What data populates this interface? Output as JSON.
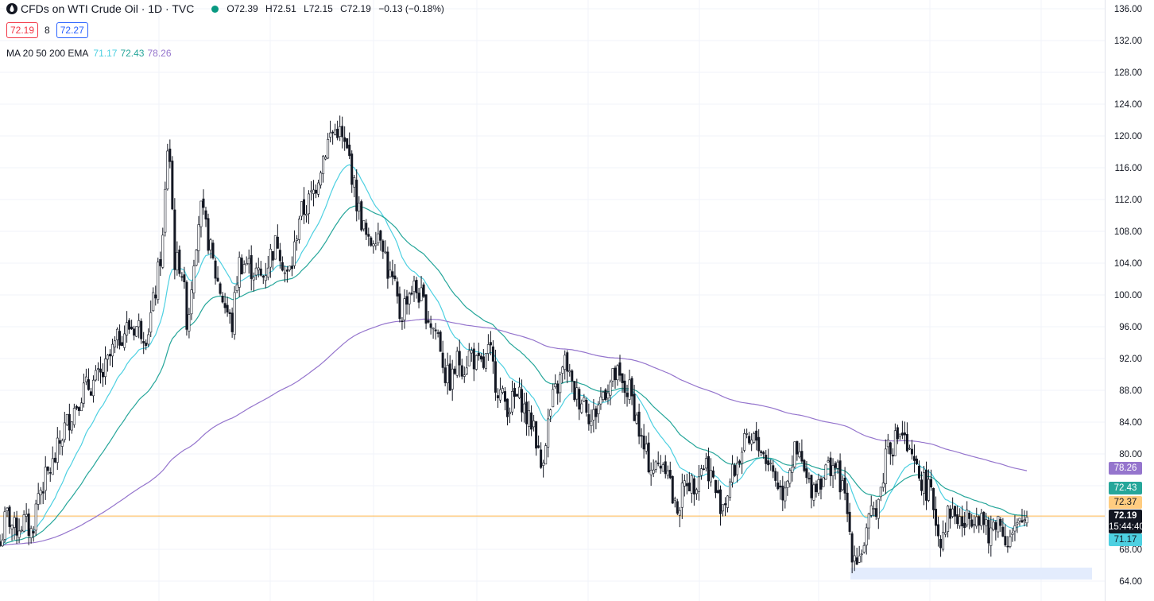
{
  "header": {
    "title": "CFDs on WTI Crude Oil · 1D · TVC",
    "ohlc": {
      "open": "O72.39",
      "high": "H72.51",
      "low": "L72.15",
      "close": "C72.19",
      "change": "−0.13 (−0.18%)"
    },
    "sell_price": "72.19",
    "spread": "8",
    "buy_price": "72.27",
    "indicator": {
      "name": "MA 20 50 200 EMA",
      "values": [
        "71.17",
        "72.43",
        "78.26"
      ]
    }
  },
  "colors": {
    "candle": "#131722",
    "ema20": "#4dd0e1",
    "ema50": "#26a69a",
    "ema200": "#9575cd",
    "last_price_line": "#ffb74d",
    "zone": "#e3ecfd"
  },
  "price_tags": {
    "ema200": "78.26",
    "ema50": "72.43",
    "alert": "72.37",
    "last_price": "72.19",
    "countdown": "15:44:40",
    "ema20": "71.17"
  },
  "chart_data": {
    "type": "candlestick",
    "interval": "1D",
    "symbol": "TVC",
    "y_axis": {
      "side": "right",
      "ylim": [
        63,
        137
      ],
      "ticks": [
        "136.00",
        "132.00",
        "128.00",
        "124.00",
        "120.00",
        "116.00",
        "112.00",
        "108.00",
        "104.00",
        "100.00",
        "96.00",
        "92.00",
        "88.00",
        "84.00",
        "80.00",
        "76.00",
        "72.00",
        "68.00",
        "64.00"
      ]
    },
    "grid": true,
    "bars": 430,
    "close_path": [
      [
        0,
        68.5
      ],
      [
        8,
        72.5
      ],
      [
        18,
        70.5
      ],
      [
        30,
        71.5
      ],
      [
        40,
        70
      ],
      [
        48,
        75
      ],
      [
        58,
        77
      ],
      [
        68,
        79
      ],
      [
        80,
        83
      ],
      [
        92,
        85.5
      ],
      [
        104,
        88
      ],
      [
        118,
        89
      ],
      [
        130,
        90
      ],
      [
        142,
        93
      ],
      [
        152,
        95
      ],
      [
        162,
        96
      ],
      [
        175,
        96
      ],
      [
        185,
        95
      ],
      [
        195,
        100
      ],
      [
        205,
        107
      ],
      [
        212,
        121
      ],
      [
        220,
        104
      ],
      [
        228,
        104
      ],
      [
        236,
        96
      ],
      [
        244,
        105
      ],
      [
        252,
        111
      ],
      [
        262,
        107
      ],
      [
        270,
        103
      ],
      [
        282,
        99
      ],
      [
        292,
        96
      ],
      [
        300,
        104
      ],
      [
        310,
        104
      ],
      [
        320,
        103
      ],
      [
        330,
        102
      ],
      [
        340,
        105
      ],
      [
        350,
        107
      ],
      [
        360,
        102
      ],
      [
        368,
        104
      ],
      [
        376,
        110
      ],
      [
        385,
        111
      ],
      [
        395,
        113
      ],
      [
        405,
        117
      ],
      [
        415,
        120
      ],
      [
        425,
        121
      ],
      [
        432,
        119
      ],
      [
        440,
        117
      ],
      [
        448,
        112
      ],
      [
        456,
        109
      ],
      [
        464,
        106
      ],
      [
        472,
        108
      ],
      [
        480,
        108
      ],
      [
        488,
        103
      ],
      [
        496,
        101
      ],
      [
        504,
        97
      ],
      [
        512,
        100
      ],
      [
        520,
        101
      ],
      [
        528,
        100
      ],
      [
        536,
        98
      ],
      [
        544,
        96
      ],
      [
        552,
        95
      ],
      [
        560,
        90
      ],
      [
        568,
        89
      ],
      [
        576,
        92
      ],
      [
        584,
        91
      ],
      [
        592,
        93
      ],
      [
        600,
        91
      ],
      [
        608,
        91
      ],
      [
        616,
        93
      ],
      [
        624,
        89
      ],
      [
        632,
        87
      ],
      [
        640,
        86
      ],
      [
        648,
        87
      ],
      [
        656,
        87
      ],
      [
        664,
        84
      ],
      [
        672,
        84
      ],
      [
        680,
        78
      ],
      [
        688,
        83
      ],
      [
        696,
        87
      ],
      [
        704,
        89
      ],
      [
        712,
        92
      ],
      [
        720,
        88
      ],
      [
        728,
        87
      ],
      [
        736,
        87
      ],
      [
        744,
        84
      ],
      [
        752,
        86
      ],
      [
        760,
        88
      ],
      [
        768,
        89
      ],
      [
        776,
        90
      ],
      [
        784,
        88
      ],
      [
        792,
        88
      ],
      [
        800,
        85
      ],
      [
        808,
        81
      ],
      [
        816,
        79
      ],
      [
        824,
        78
      ],
      [
        832,
        79
      ],
      [
        840,
        79
      ],
      [
        848,
        73
      ],
      [
        856,
        74
      ],
      [
        864,
        77
      ],
      [
        872,
        76
      ],
      [
        880,
        78
      ],
      [
        888,
        79
      ],
      [
        896,
        77
      ],
      [
        904,
        74
      ],
      [
        912,
        74
      ],
      [
        920,
        77
      ],
      [
        928,
        79
      ],
      [
        936,
        81
      ],
      [
        944,
        81
      ],
      [
        952,
        82
      ],
      [
        960,
        80
      ],
      [
        968,
        79
      ],
      [
        976,
        77
      ],
      [
        984,
        75
      ],
      [
        992,
        78
      ],
      [
        1000,
        80
      ],
      [
        1008,
        79
      ],
      [
        1016,
        76
      ],
      [
        1024,
        76
      ],
      [
        1032,
        77
      ],
      [
        1040,
        78
      ],
      [
        1048,
        79
      ],
      [
        1056,
        77
      ],
      [
        1064,
        74
      ],
      [
        1072,
        68
      ],
      [
        1080,
        67
      ],
      [
        1088,
        69
      ],
      [
        1096,
        72
      ],
      [
        1104,
        74
      ],
      [
        1110,
        76
      ],
      [
        1116,
        82
      ],
      [
        1122,
        81
      ],
      [
        1128,
        82
      ],
      [
        1134,
        83
      ],
      [
        1140,
        81
      ],
      [
        1146,
        79
      ],
      [
        1152,
        78
      ],
      [
        1158,
        77
      ],
      [
        1164,
        76
      ],
      [
        1170,
        75
      ],
      [
        1176,
        73
      ],
      [
        1182,
        69
      ],
      [
        1188,
        71
      ],
      [
        1196,
        73
      ],
      [
        1204,
        72
      ],
      [
        1212,
        71
      ],
      [
        1220,
        72
      ],
      [
        1228,
        73
      ],
      [
        1236,
        72
      ],
      [
        1244,
        69
      ],
      [
        1252,
        72
      ],
      [
        1260,
        71
      ],
      [
        1268,
        69
      ],
      [
        1276,
        70
      ],
      [
        1284,
        71
      ],
      [
        1292,
        72.19
      ]
    ],
    "emas": [
      {
        "name": "EMA 20",
        "period": 20,
        "value": 71.17
      },
      {
        "name": "EMA 50",
        "period": 50,
        "value": 72.43
      },
      {
        "name": "EMA 200",
        "period": 200,
        "value": 78.26
      }
    ],
    "last_price": 72.19,
    "alert_level": 72.37,
    "demand_zone": {
      "low": 64.2,
      "high": 65.7,
      "x_start": 1070,
      "x_end": 1374
    }
  }
}
